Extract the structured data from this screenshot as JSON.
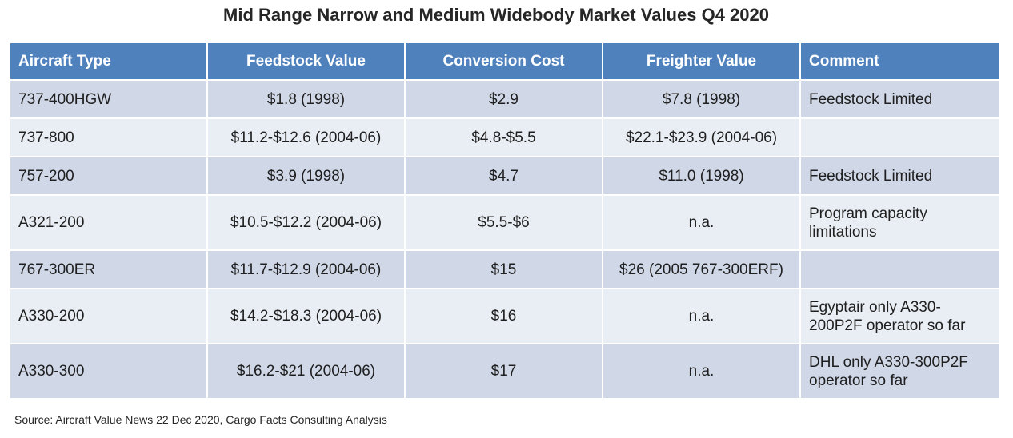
{
  "title": "Mid Range Narrow and Medium Widebody Market Values Q4 2020",
  "header_color": "#4f81bd",
  "row_colors": [
    "#d0d8e8",
    "#e9edf4"
  ],
  "columns": [
    "Aircraft Type",
    "Feedstock Value",
    "Conversion Cost",
    "Freighter Value",
    "Comment"
  ],
  "rows": [
    {
      "type": "737-400HGW",
      "feedstock": "$1.8 (1998)",
      "conversion": "$2.9",
      "freighter": "$7.8 (1998)",
      "comment": "Feedstock Limited"
    },
    {
      "type": "737-800",
      "feedstock": "$11.2-$12.6 (2004-06)",
      "conversion": "$4.8-$5.5",
      "freighter": "$22.1-$23.9 (2004-06)",
      "comment": ""
    },
    {
      "type": "757-200",
      "feedstock": "$3.9 (1998)",
      "conversion": "$4.7",
      "freighter": "$11.0 (1998)",
      "comment": "Feedstock Limited"
    },
    {
      "type": "A321-200",
      "feedstock": "$10.5-$12.2 (2004-06)",
      "conversion": "$5.5-$6",
      "freighter": "n.a.",
      "comment": "Program capacity limitations"
    },
    {
      "type": "767-300ER",
      "feedstock": "$11.7-$12.9 (2004-06)",
      "conversion": "$15",
      "freighter": "$26 (2005 767-300ERF)",
      "comment": ""
    },
    {
      "type": "A330-200",
      "feedstock": "$14.2-$18.3 (2004-06)",
      "conversion": "$16",
      "freighter": "n.a.",
      "comment": "Egyptair only A330-200P2F operator so far"
    },
    {
      "type": "A330-300",
      "feedstock": "$16.2-$21 (2004-06)",
      "conversion": "$17",
      "freighter": "n.a.",
      "comment": "DHL only A330-300P2F operator so far"
    }
  ],
  "source": "Source: Aircraft Value News 22 Dec 2020, Cargo Facts Consulting Analysis"
}
